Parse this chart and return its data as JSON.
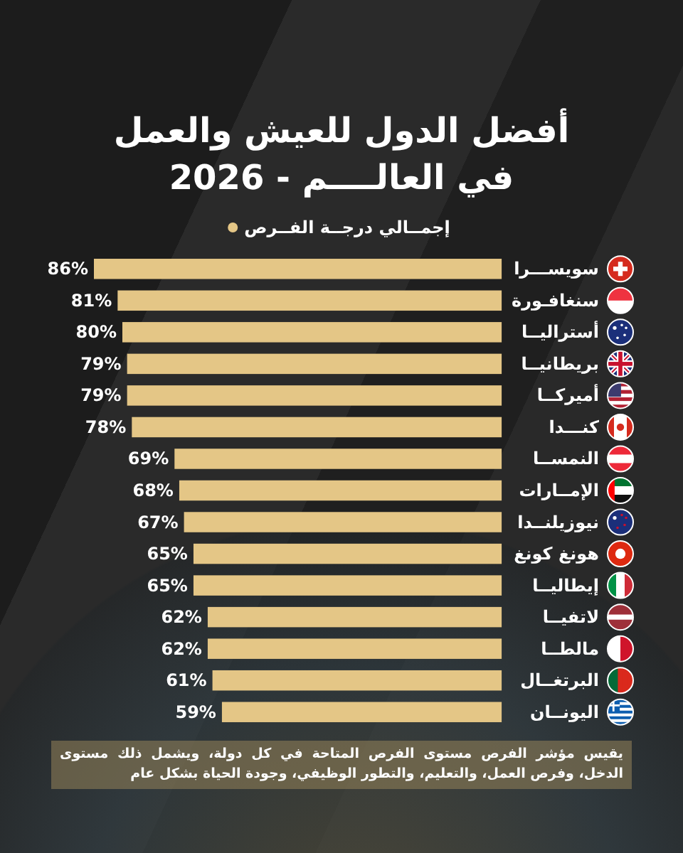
{
  "chart_data": {
    "type": "bar",
    "orientation": "horizontal",
    "title": "أفضل الدول للعيش والعمل\nفي العالــــم - 2026",
    "categories": [
      "سويســـرا",
      "سنغافـورة",
      "أستراليــا",
      "بريطانيــا",
      "أميركــا",
      "كنـــدا",
      "النمســا",
      "الإمــارات",
      "نيوزيلنــدا",
      "هونغ كونغ",
      "إيطاليــا",
      "لاتفيــا",
      "مالطــا",
      "البرتغــال",
      "اليونــان"
    ],
    "series": [
      {
        "name": "إجمــالي درجــة الفــرص",
        "color": "#e4c686",
        "values": [
          86,
          81,
          80,
          79,
          79,
          78,
          69,
          68,
          67,
          65,
          65,
          62,
          62,
          61,
          59
        ],
        "value_labels": [
          "86%",
          "81%",
          "80%",
          "79%",
          "79%",
          "78%",
          "69%",
          "68%",
          "67%",
          "65%",
          "65%",
          "62%",
          "62%",
          "61%",
          "59%"
        ]
      }
    ],
    "legend": "top",
    "annotations": [
      "يقيس مؤشر الفرص مستوى الفرص المتاحة في كل دولة، ويشمل ذلك مستوى الدخل، وفرص العمل، والتعليم، والتطور الوظيفي، وجودة الحياة بشكل عام"
    ]
  }
}
